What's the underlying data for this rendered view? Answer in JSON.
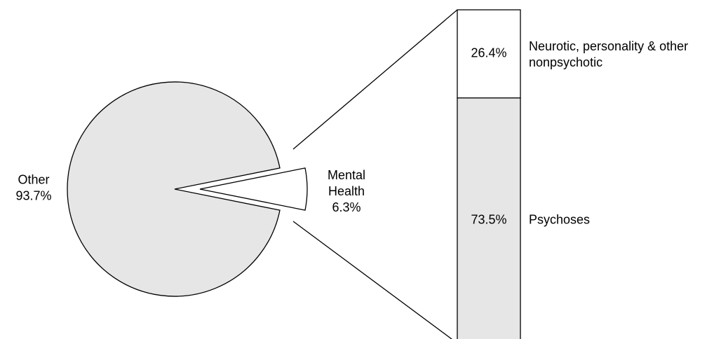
{
  "chart_data": {
    "type": "pie",
    "chart_style": "bar-of-pie",
    "pie": {
      "slices": [
        {
          "label_lines": [
            "Other",
            "93.7%"
          ],
          "name": "Other",
          "value": 93.7,
          "color": "#e6e6e6"
        },
        {
          "label_lines": [
            "Mental",
            "Health",
            "6.3%"
          ],
          "name": "Mental Health",
          "value": 6.3,
          "color": "#ffffff",
          "exploded": true
        }
      ]
    },
    "bar": {
      "segments": [
        {
          "value": 73.5,
          "value_label": "73.5%",
          "name_lines": [
            "Psychoses"
          ],
          "color": "#e6e6e6"
        },
        {
          "value": 26.4,
          "value_label": "26.4%",
          "name_lines": [
            "Neurotic, personality & other",
            "nonpsychotic"
          ],
          "color": "#ffffff"
        }
      ]
    },
    "grid": false,
    "legend": "none"
  }
}
